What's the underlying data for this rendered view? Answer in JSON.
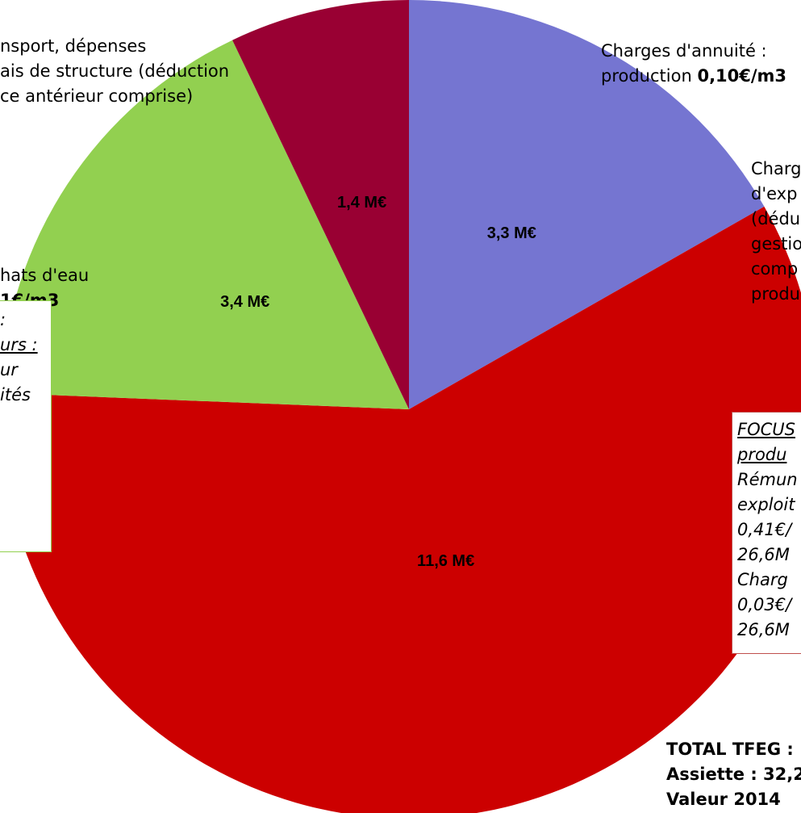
{
  "chart_data": {
    "type": "pie",
    "slices": [
      {
        "label": "Charges d'annuité : production",
        "label_value": "0,10€/m3",
        "value": 3.3,
        "value_label": "3,3 M€",
        "color": "#7575d1"
      },
      {
        "label": "",
        "value": 11.6,
        "value_label": "11,6 M€",
        "color": "#cc0000"
      },
      {
        "label": "",
        "value": 3.4,
        "value_label": "3,4 M€",
        "color": "#92d050"
      },
      {
        "label": "",
        "value": 1.4,
        "value_label": "1,4 M€",
        "color": "#990033"
      }
    ],
    "start_angle_deg": 0,
    "direction": "clockwise"
  },
  "labels": {
    "top_left_line1": "nsport, dépenses",
    "top_left_line2": "ais de structure (déduction",
    "top_left_line3": "ce antérieur comprise)",
    "annuity_line1": "Charges d'annuité :",
    "annuity_line2_prefix": "production",
    "annuity_line2_bold": "0,10€/m3",
    "exploit_line1": "Charg",
    "exploit_line2": "d'exp",
    "exploit_line3": "(dédu",
    "exploit_line4": "gestio",
    "exploit_line5": "comp",
    "exploit_line6": "produ",
    "achats_line1": "hats d'eau",
    "achats_line2": "1€/m3"
  },
  "left_box": {
    "line1": ":",
    "line2": "urs :",
    "line3": "ur",
    "line4": "ités"
  },
  "focus_box": {
    "line1": "FOCUS",
    "line2": "produ",
    "line3": "Rémun",
    "line4": "exploit",
    "line5": "0,41€/",
    "line6": "26,6M",
    "line7": "Charg",
    "line8": "0,03€/",
    "line9": "26,6M"
  },
  "total": {
    "line1": "TOTAL TFEG :",
    "line2": "Assiette : 32,2",
    "line3": "Valeur 2014"
  },
  "colors": {
    "blue_slice": "#7575d1",
    "red_slice": "#cc0000",
    "green_slice": "#92d050",
    "maroon_slice": "#990033",
    "focus_border": "#c0504d",
    "left_box_border": "#92d050"
  }
}
